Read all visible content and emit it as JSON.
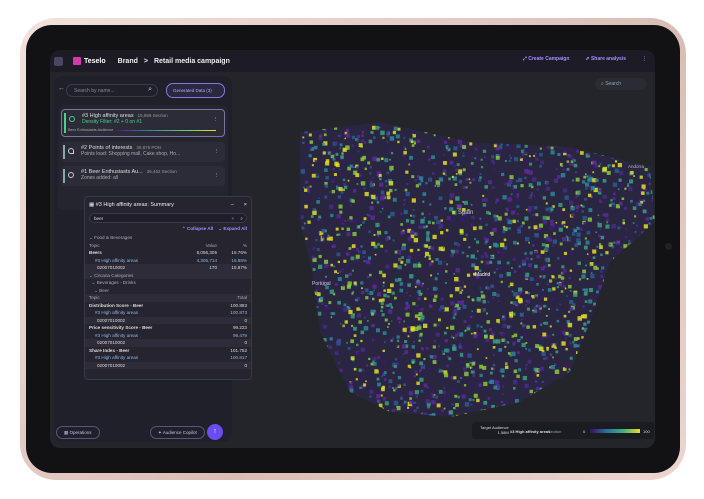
{
  "topbar": {
    "brand": "Teselo",
    "crumb1": "Brand",
    "crumb2": "Retail media campaign",
    "create": "Create Campaign",
    "share": "Share analysis"
  },
  "panel": {
    "search_placeholder": "Search by name...",
    "generated": "Generated Data (3)",
    "items": [
      {
        "title": "#3 High affinity areas",
        "meta": "15,959 Section",
        "sub": "Density Filter: #2 + 0 on #1",
        "extra": "Beer Enthusiasts Audience"
      },
      {
        "title": "#2 Points of interests",
        "meta": "30,876 POIs",
        "sub": "Points load: Shopping mall, Cake shop, Ho..."
      },
      {
        "title": "#1 Beer Enthusiasts Au...",
        "meta": "36,462 Section",
        "sub": "Zones added: all"
      }
    ]
  },
  "summary": {
    "title": "#3 High affinity areas: Summary",
    "search_value": "beer",
    "collapse": "Collapse All",
    "expand": "Expand All",
    "group1": "Food & Beverages",
    "head": [
      "Topic",
      "Value",
      "%"
    ],
    "rows1": [
      [
        "Beers",
        "8,056,305",
        "16.76%"
      ],
      [
        "#3 High affinity areas",
        "4,305,714",
        "16.88%"
      ],
      [
        "02007010002",
        "170",
        "15.87%"
      ]
    ],
    "group2": "Circana Categories",
    "group3": "Beverages - Drinks",
    "group4": "Beer",
    "head2": [
      "Topic",
      "Total"
    ],
    "rows2": [
      [
        "Distribution Score - Beer",
        "100.883"
      ],
      [
        "#3 High affinity areas",
        "100.873"
      ],
      [
        "02007010002",
        "0"
      ],
      [
        "Price sensitivity Score - Beer",
        "99.223"
      ],
      [
        "#3 High affinity areas",
        "99.479"
      ],
      [
        "02007010002",
        "0"
      ],
      [
        "Share Index - Beer",
        "101.752"
      ],
      [
        "#3 High affinity areas",
        "100.817"
      ],
      [
        "02007010002",
        "0"
      ]
    ]
  },
  "bottom": {
    "operations": "Operations",
    "copilot": "Audience Copilot"
  },
  "map": {
    "search": "Search",
    "labels": [
      "Spain",
      "Portugal",
      "Andorra",
      "Madrid"
    ]
  },
  "legend": {
    "target": "Target Audience",
    "count": "1.58M",
    "layer": "#3 High affinity areas",
    "type": "Section",
    "min": "0",
    "max": "100"
  }
}
